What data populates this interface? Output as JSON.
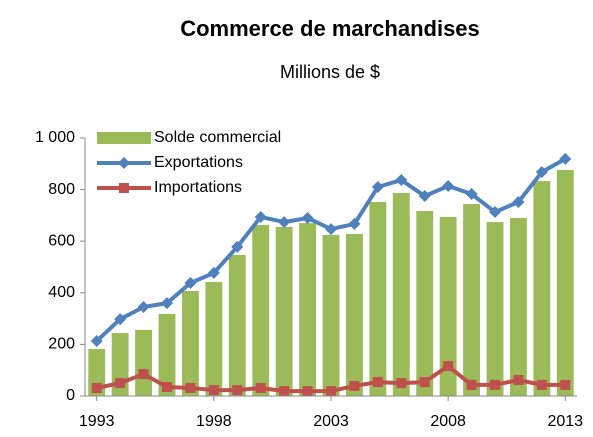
{
  "chart_data": {
    "type": "bar_line",
    "title": "Commerce de marchandises",
    "subtitle": "Millions de $",
    "x": [
      1993,
      1994,
      1995,
      1996,
      1997,
      1998,
      1999,
      2000,
      2001,
      2002,
      2003,
      2004,
      2005,
      2006,
      2007,
      2008,
      2009,
      2010,
      2011,
      2012,
      2013
    ],
    "xlim": [
      1992.5,
      2013.5
    ],
    "xticks": [
      1993,
      1998,
      2003,
      2008,
      2013
    ],
    "ylim": [
      0,
      1000
    ],
    "yticks": [
      0,
      200,
      400,
      600,
      800,
      {
        "value": 1000,
        "label": "1 000"
      }
    ],
    "grid": false,
    "legend": "upper left",
    "series": [
      {
        "name": "Solde commercial",
        "type": "bar",
        "color": "#9bbb59",
        "values": [
          182,
          244,
          256,
          318,
          407,
          442,
          547,
          663,
          655,
          670,
          624,
          628,
          752,
          787,
          717,
          694,
          744,
          674,
          690,
          833,
          876
        ]
      },
      {
        "name": "Exportations",
        "type": "line",
        "marker": "diamond",
        "color": "#4f81bd",
        "values": [
          213,
          298,
          345,
          360,
          438,
          477,
          578,
          694,
          674,
          690,
          647,
          667,
          810,
          837,
          775,
          814,
          783,
          713,
          752,
          868,
          919
        ]
      },
      {
        "name": "Importations",
        "type": "line",
        "marker": "square",
        "color": "#c0504d",
        "values": [
          31,
          50,
          85,
          35,
          31,
          23,
          23,
          31,
          19,
          19,
          19,
          39,
          54,
          50,
          54,
          116,
          43,
          43,
          62,
          43,
          43
        ]
      }
    ]
  }
}
